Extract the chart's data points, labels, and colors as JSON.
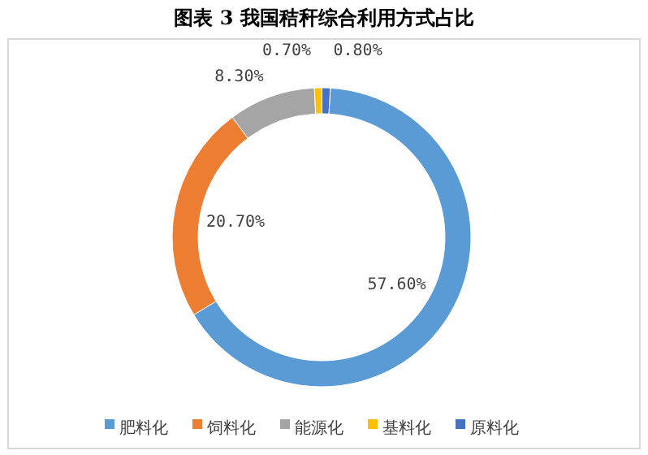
{
  "chart_data": {
    "type": "donut",
    "title": "图表 3    我国秸秆综合利用方式占比",
    "categories": [
      "肥料化",
      "饲料化",
      "能源化",
      "基料化",
      "原料化"
    ],
    "values": [
      57.6,
      20.7,
      8.3,
      0.7,
      0.8
    ],
    "colors": [
      "#5b9bd5",
      "#ed7d31",
      "#a5a5a5",
      "#ffc000",
      "#4472c4"
    ],
    "value_labels": [
      "57.60%",
      "20.70%",
      "8.30%",
      "0.70%",
      "0.80%"
    ],
    "legend": "bottom"
  }
}
